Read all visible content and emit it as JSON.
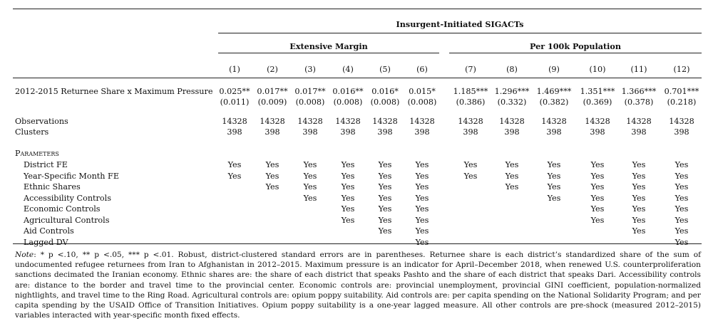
{
  "header": {
    "group_title": "Insurgent-Initiated SIGACTs",
    "subgroups": [
      "Extensive Margin",
      "Per 100k Population"
    ],
    "columns": [
      "(1)",
      "(2)",
      "(3)",
      "(4)",
      "(5)",
      "(6)",
      "(7)",
      "(8)",
      "(9)",
      "(10)",
      "(11)",
      "(12)"
    ]
  },
  "main_row": {
    "label": "2012-2015 Returnee Share x Maximum Pressure",
    "coefficients": [
      "0.025**",
      "0.017**",
      "0.017**",
      "0.016**",
      "0.016*",
      "0.015*",
      "1.185***",
      "1.296***",
      "1.469***",
      "1.351***",
      "1.366***",
      "0.701***"
    ],
    "std_errors": [
      "(0.011)",
      "(0.009)",
      "(0.008)",
      "(0.008)",
      "(0.008)",
      "(0.008)",
      "(0.386)",
      "(0.332)",
      "(0.382)",
      "(0.369)",
      "(0.378)",
      "(0.218)"
    ]
  },
  "stats": [
    {
      "label": "Observations",
      "values": [
        "14328",
        "14328",
        "14328",
        "14328",
        "14328",
        "14328",
        "14328",
        "14328",
        "14328",
        "14328",
        "14328",
        "14328"
      ]
    },
    {
      "label": "Clusters",
      "values": [
        "398",
        "398",
        "398",
        "398",
        "398",
        "398",
        "398",
        "398",
        "398",
        "398",
        "398",
        "398"
      ]
    }
  ],
  "parameters": {
    "heading": "Parameters",
    "rows": [
      {
        "label": "District FE",
        "values": [
          "Yes",
          "Yes",
          "Yes",
          "Yes",
          "Yes",
          "Yes",
          "Yes",
          "Yes",
          "Yes",
          "Yes",
          "Yes",
          "Yes"
        ]
      },
      {
        "label": "Year-Specific Month FE",
        "values": [
          "Yes",
          "Yes",
          "Yes",
          "Yes",
          "Yes",
          "Yes",
          "Yes",
          "Yes",
          "Yes",
          "Yes",
          "Yes",
          "Yes"
        ]
      },
      {
        "label": "Ethnic Shares",
        "values": [
          "",
          "Yes",
          "Yes",
          "Yes",
          "Yes",
          "Yes",
          "",
          "Yes",
          "Yes",
          "Yes",
          "Yes",
          "Yes"
        ]
      },
      {
        "label": "Accessibility Controls",
        "values": [
          "",
          "",
          "Yes",
          "Yes",
          "Yes",
          "Yes",
          "",
          "",
          "Yes",
          "Yes",
          "Yes",
          "Yes"
        ]
      },
      {
        "label": "Economic Controls",
        "values": [
          "",
          "",
          "",
          "Yes",
          "Yes",
          "Yes",
          "",
          "",
          "",
          "Yes",
          "Yes",
          "Yes"
        ]
      },
      {
        "label": "Agricultural Controls",
        "values": [
          "",
          "",
          "",
          "Yes",
          "Yes",
          "Yes",
          "",
          "",
          "",
          "Yes",
          "Yes",
          "Yes"
        ]
      },
      {
        "label": "Aid Controls",
        "values": [
          "",
          "",
          "",
          "",
          "Yes",
          "Yes",
          "",
          "",
          "",
          "",
          "Yes",
          "Yes"
        ]
      },
      {
        "label": "Lagged DV",
        "values": [
          "",
          "",
          "",
          "",
          "",
          "Yes",
          "",
          "",
          "",
          "",
          "",
          "Yes"
        ]
      }
    ]
  },
  "note": {
    "label": "Note",
    "text": ": * p <.10, ** p <.05, *** p <.01. Robust, district-clustered standard errors are in parentheses. Returnee share is each district’s standardized share of the sum of undocumented refugee returnees from Iran to Afghanistan in 2012–2015. Maximum pressure is an indicator for April–December 2018, when renewed U.S. counterproliferation sanctions decimated the Iranian economy. Ethnic shares are: the share of each district that speaks Pashto and the share of each district that speaks Dari. Accessibility controls are: distance to the border and travel time to the provincial center. Economic controls are: provincial unemployment, provincial GINI coefficient, population-normalized nightlights, and travel time to the Ring Road. Agricultural controls are: opium poppy suitability. Aid controls are: per capita spending on the National Solidarity Program; and per capita spending by the USAID Office of Transition Initiatives. Opium poppy suitability is a one-year lagged measure. All other controls are pre-shock (measured 2012–2015) variables interacted with year-specific month fixed effects."
  }
}
